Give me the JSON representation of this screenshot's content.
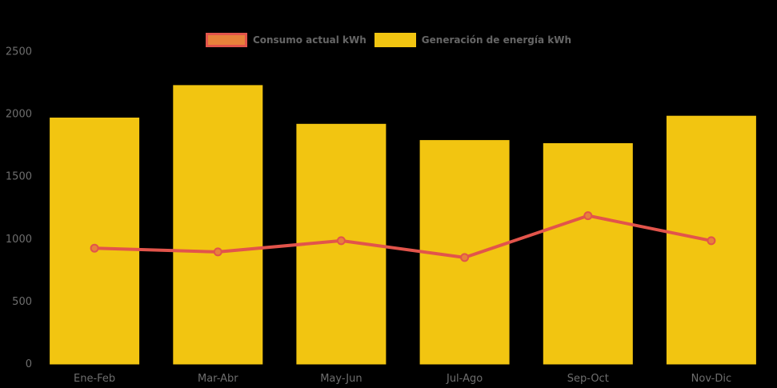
{
  "legend": {
    "items": [
      {
        "label": "Consumo actual kWh",
        "swatch_fill": "#e8813a",
        "swatch_border": "#e2544b"
      },
      {
        "label": "Generación de energía kWh",
        "swatch_fill": "#f2c511",
        "swatch_border": "#f2c511"
      }
    ]
  },
  "colors": {
    "background": "#000000",
    "bar": "#f2c511",
    "line": "#e2544b",
    "point_fill": "#e8813a",
    "axis_text": "#6e6e6e",
    "legend_text": "#666666"
  },
  "chart_data": {
    "type": "bar",
    "title": "",
    "xlabel": "",
    "ylabel": "",
    "categories": [
      "Ene-Feb",
      "Mar-Abr",
      "May-Jun",
      "Jul-Ago",
      "Sep-Oct",
      "Nov-Dic"
    ],
    "series": [
      {
        "name": "Consumo actual kWh",
        "type": "line",
        "values": [
          930,
          900,
          990,
          855,
          1190,
          990
        ],
        "line_color": "#e2544b",
        "point_fill": "#e8813a"
      },
      {
        "name": "Generación de energía kWh",
        "type": "bar",
        "values": [
          1975,
          2235,
          1925,
          1795,
          1770,
          1990
        ],
        "bar_color": "#f2c511"
      }
    ],
    "ylim": [
      0,
      2500
    ],
    "yticks": [
      0,
      500,
      1000,
      1500,
      2000,
      2500
    ],
    "grid": false,
    "legend_position": "top",
    "background": "#000000"
  }
}
